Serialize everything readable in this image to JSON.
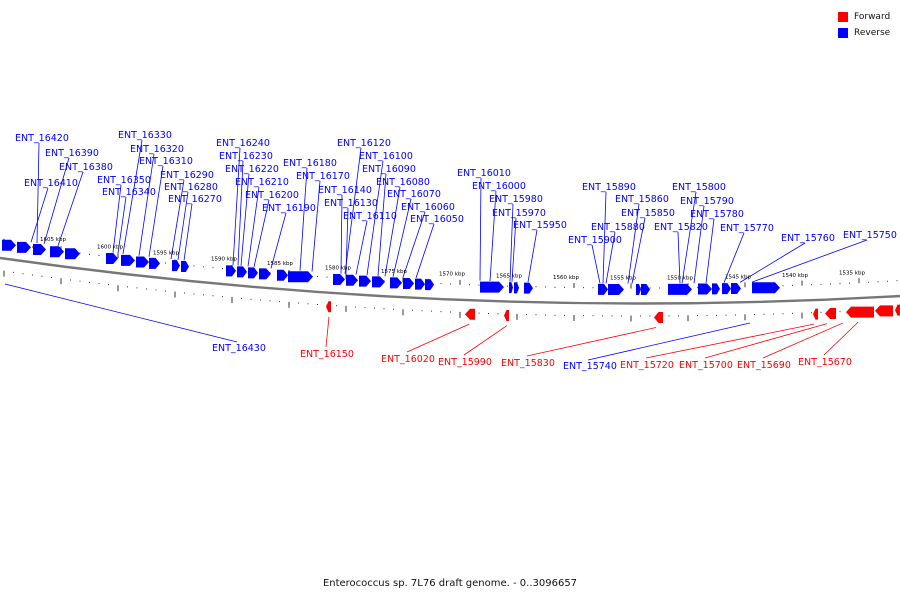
{
  "legend": {
    "forward_label": "Forward",
    "reverse_label": "Reverse",
    "forward_color": "#ff0000",
    "reverse_color": "#0000ff"
  },
  "caption": "Enterococcus sp. 7L76 draft genome. - 0..3096657",
  "ruler_ticks": [
    "1605 kbp",
    "1600 kbp",
    "1595 kbp",
    "1590 kbp",
    "1585 kbp",
    "1580 kbp",
    "1575 kbp",
    "1570 kbp",
    "1565 kbp",
    "1560 kbp",
    "1555 kbp",
    "1550 kbp",
    "1545 kbp",
    "1540 kbp",
    "1535 kbp"
  ],
  "reverse_genes": [
    "ENT_16420",
    "ENT_16390",
    "ENT_16380",
    "ENT_16410",
    "ENT_16330",
    "ENT_16320",
    "ENT_16310",
    "ENT_16350",
    "ENT_16340",
    "ENT_16290",
    "ENT_16280",
    "ENT_16270",
    "ENT_16240",
    "ENT_16230",
    "ENT_16220",
    "ENT_16210",
    "ENT_16200",
    "ENT_16190",
    "ENT_16180",
    "ENT_16170",
    "ENT_16120",
    "ENT_16100",
    "ENT_16090",
    "ENT_16080",
    "ENT_16070",
    "ENT_16060",
    "ENT_16050",
    "ENT_16140",
    "ENT_16130",
    "ENT_16110",
    "ENT_16010",
    "ENT_16000",
    "ENT_15980",
    "ENT_15970",
    "ENT_15950",
    "ENT_15890",
    "ENT_15860",
    "ENT_15850",
    "ENT_15880",
    "ENT_15900",
    "ENT_15800",
    "ENT_15790",
    "ENT_15780",
    "ENT_15820",
    "ENT_15770",
    "ENT_15760",
    "ENT_15750",
    "ENT_16430",
    "ENT_15740"
  ],
  "forward_genes": [
    "ENT_16150",
    "ENT_16020",
    "ENT_15990",
    "ENT_15830",
    "ENT_15720",
    "ENT_15700",
    "ENT_15690",
    "ENT_15670"
  ]
}
